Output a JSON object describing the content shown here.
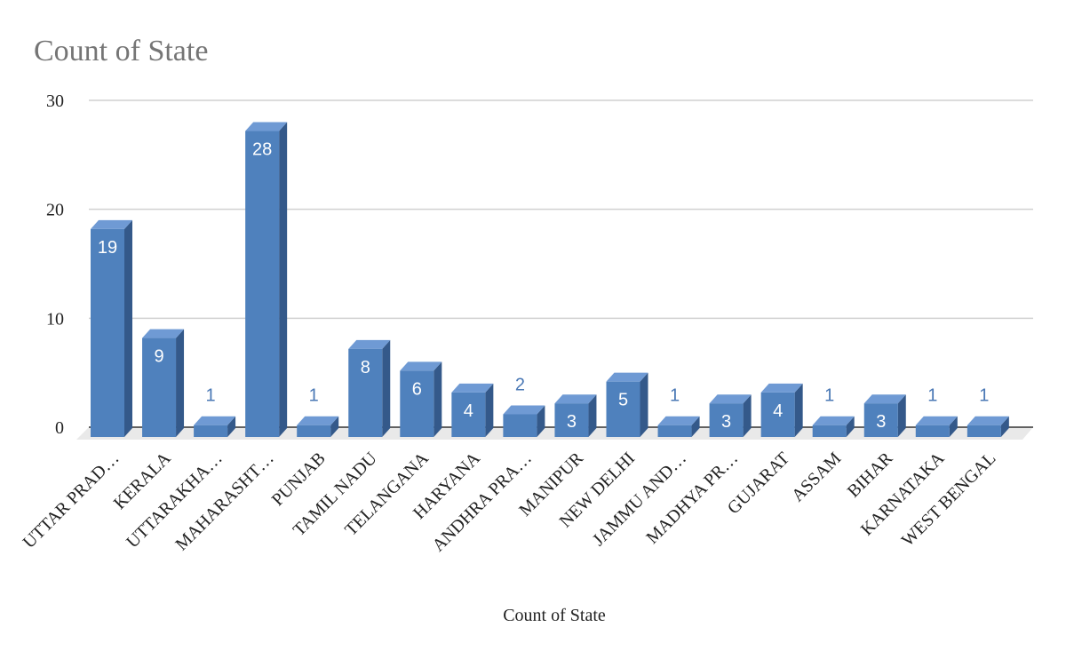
{
  "chart_data": {
    "type": "bar",
    "title": "Count of State",
    "xlabel": "Count of State",
    "ylabel": "",
    "ylim": [
      0,
      30
    ],
    "yticks": [
      "0",
      "10",
      "20",
      "30"
    ],
    "grid": true,
    "legend": "none",
    "categories": [
      "UTTAR PRAD…",
      "KERALA",
      "UTTARAKHA…",
      "MAHARASHT…",
      "PUNJAB",
      "TAMIL NADU",
      "TELANGANA",
      "HARYANA",
      "ANDHRA PRA…",
      "MANIPUR",
      "NEW DELHI",
      "JAMMU AND…",
      "MADHYA PR…",
      "GUJARAT",
      "ASSAM",
      "BIHAR",
      "KARNATAKA",
      "WEST BENGAL"
    ],
    "values": [
      19,
      9,
      1,
      28,
      1,
      8,
      6,
      4,
      2,
      3,
      5,
      1,
      3,
      4,
      1,
      3,
      1,
      1
    ],
    "colors": {
      "bar_front": "#4f81bd",
      "bar_top": "#6f9ad4",
      "bar_side": "#34598a",
      "label_outside": "#4a78b5",
      "grid": "#d0d0d0",
      "floor": "#e9e9e9"
    }
  }
}
